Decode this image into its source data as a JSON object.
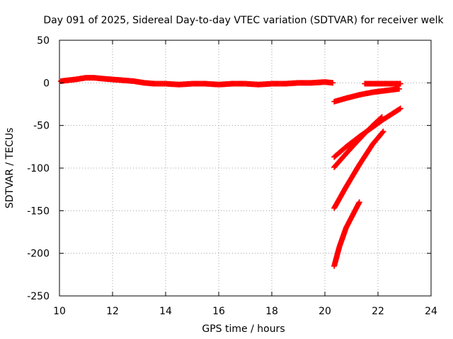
{
  "chart_data": {
    "type": "scatter",
    "title": "Day 091 of 2025, Sidereal Day-to-day VTEC variation (SDTVAR) for receiver welk",
    "xlabel": "GPS time / hours",
    "ylabel": "SDTVAR / TECUs",
    "xlim": [
      10,
      24
    ],
    "ylim": [
      -250,
      50
    ],
    "xticks": [
      10,
      12,
      14,
      16,
      18,
      20,
      22,
      24
    ],
    "yticks": [
      -250,
      -200,
      -150,
      -100,
      -50,
      0,
      50
    ],
    "grid": true,
    "marker": "plus",
    "color": "#ff0000",
    "series": [
      {
        "x": [
          10.05,
          10.3,
          10.6,
          10.8,
          11.0,
          11.3,
          11.6,
          12.0,
          12.4,
          12.8,
          13.2,
          13.6,
          14.0,
          14.5,
          15.0,
          15.5,
          16.0,
          16.5,
          17.0,
          17.5,
          18.0,
          18.5,
          19.0,
          19.5,
          20.0,
          20.3
        ],
        "y": [
          2,
          3,
          4,
          5,
          6,
          6,
          5,
          4,
          3,
          2,
          0,
          -1,
          -1,
          -2,
          -1,
          -1,
          -2,
          -1,
          -1,
          -2,
          -1,
          -1,
          0,
          0,
          1,
          0
        ]
      },
      {
        "x": [
          21.5,
          21.8,
          22.1,
          22.4,
          22.7,
          22.85
        ],
        "y": [
          -1,
          -1,
          -1,
          -1,
          -1,
          -1
        ]
      },
      {
        "x": [
          20.35,
          20.8,
          21.3,
          21.8,
          22.3,
          22.8
        ],
        "y": [
          -22,
          -18,
          -14,
          -11,
          -9,
          -7
        ]
      },
      {
        "x": [
          20.35,
          20.8,
          21.3,
          21.8,
          22.2,
          22.85
        ],
        "y": [
          -87,
          -75,
          -63,
          -52,
          -43,
          -30
        ]
      },
      {
        "x": [
          20.35,
          20.8,
          21.3,
          21.8,
          22.15
        ],
        "y": [
          -99,
          -83,
          -66,
          -50,
          -40
        ]
      },
      {
        "x": [
          20.35,
          20.8,
          21.3,
          21.8,
          22.2
        ],
        "y": [
          -147,
          -122,
          -96,
          -72,
          -57
        ]
      },
      {
        "x": [
          20.35,
          20.55,
          20.8,
          21.05,
          21.3
        ],
        "y": [
          -215,
          -192,
          -170,
          -155,
          -140
        ]
      }
    ]
  }
}
